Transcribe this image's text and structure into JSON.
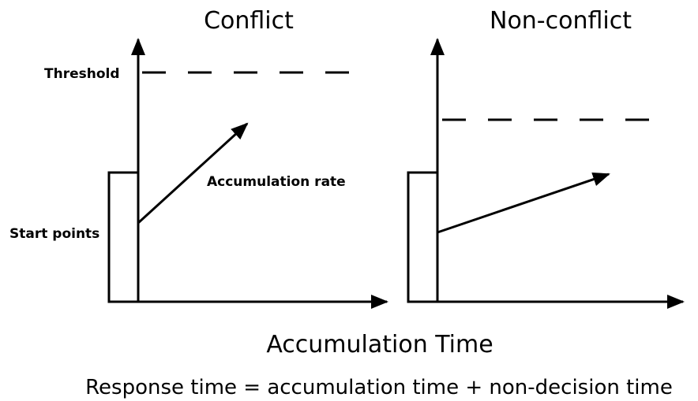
{
  "panels": [
    {
      "title": "Conflict"
    },
    {
      "title": "Non-conflict"
    }
  ],
  "labels": {
    "threshold": "Threshold",
    "accumulation_rate": "Accumulation rate",
    "start_points": "Start points"
  },
  "x_axis_label": "Accumulation Time",
  "formula": "Response time = accumulation time + non-decision time"
}
